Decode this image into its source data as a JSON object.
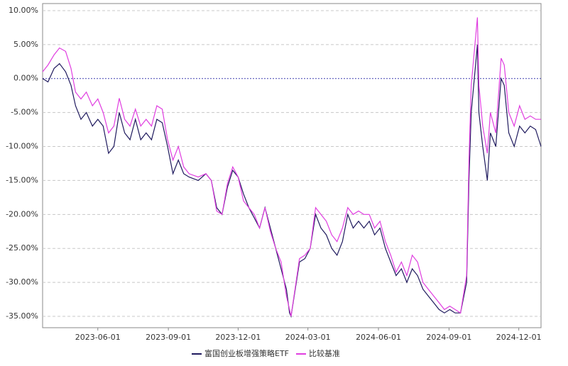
{
  "chart_data": {
    "type": "line",
    "x": [
      "2023-03-21",
      "2023-03-28",
      "2023-04-05",
      "2023-04-12",
      "2023-04-20",
      "2023-04-27",
      "2023-05-03",
      "2023-05-10",
      "2023-05-17",
      "2023-05-25",
      "2023-06-01",
      "2023-06-08",
      "2023-06-15",
      "2023-06-22",
      "2023-06-29",
      "2023-07-06",
      "2023-07-13",
      "2023-07-20",
      "2023-07-27",
      "2023-08-03",
      "2023-08-10",
      "2023-08-17",
      "2023-08-24",
      "2023-08-31",
      "2023-09-07",
      "2023-09-14",
      "2023-09-21",
      "2023-09-28",
      "2023-10-10",
      "2023-10-20",
      "2023-10-27",
      "2023-11-03",
      "2023-11-10",
      "2023-11-17",
      "2023-11-24",
      "2023-12-01",
      "2023-12-08",
      "2023-12-15",
      "2023-12-22",
      "2023-12-29",
      "2024-01-05",
      "2024-01-12",
      "2024-01-19",
      "2024-01-26",
      "2024-02-02",
      "2024-02-06",
      "2024-02-08",
      "2024-02-19",
      "2024-02-26",
      "2024-03-04",
      "2024-03-11",
      "2024-03-18",
      "2024-03-25",
      "2024-04-01",
      "2024-04-08",
      "2024-04-15",
      "2024-04-22",
      "2024-04-29",
      "2024-05-06",
      "2024-05-13",
      "2024-05-20",
      "2024-05-27",
      "2024-06-03",
      "2024-06-10",
      "2024-06-17",
      "2024-06-24",
      "2024-07-01",
      "2024-07-08",
      "2024-07-15",
      "2024-07-22",
      "2024-07-29",
      "2024-08-05",
      "2024-08-12",
      "2024-08-19",
      "2024-08-26",
      "2024-09-02",
      "2024-09-09",
      "2024-09-16",
      "2024-09-24",
      "2024-09-27",
      "2024-09-30",
      "2024-10-08",
      "2024-10-10",
      "2024-10-15",
      "2024-10-21",
      "2024-10-25",
      "2024-11-01",
      "2024-11-08",
      "2024-11-12",
      "2024-11-18",
      "2024-11-25",
      "2024-12-02",
      "2024-12-09",
      "2024-12-16",
      "2024-12-23",
      "2024-12-30"
    ],
    "series": [
      {
        "name": "富国创业板增强策略ETF",
        "color": "#1f1a5e",
        "values": [
          0,
          -0.5,
          1.5,
          2.2,
          1,
          -1,
          -4,
          -6,
          -5,
          -7,
          -6,
          -7,
          -11,
          -10,
          -5,
          -8,
          -9,
          -6,
          -9,
          -8,
          -9,
          -6,
          -6.5,
          -10,
          -14,
          -12,
          -14,
          -14.5,
          -15,
          -14,
          -15,
          -19,
          -20,
          -16,
          -13.5,
          -14.5,
          -17,
          -19,
          -20.5,
          -22,
          -19,
          -22,
          -25,
          -28,
          -31,
          -34.5,
          -35,
          -27,
          -26.5,
          -25,
          -20,
          -22,
          -23,
          -25,
          -26,
          -24,
          -20,
          -22,
          -21,
          -22,
          -21,
          -23,
          -22,
          -25,
          -27,
          -29,
          -28,
          -30,
          -28,
          -29,
          -31,
          -32,
          -33,
          -34,
          -34.5,
          -34,
          -34.5,
          -34.5,
          -30,
          -15,
          -5,
          5,
          -5,
          -10,
          -15,
          -8,
          -10,
          0,
          -1,
          -8,
          -10,
          -7,
          -8,
          -7,
          -7.5,
          -10
        ]
      },
      {
        "name": "比较基准",
        "color": "#e03ee0",
        "values": [
          1,
          2,
          3.5,
          4.5,
          4,
          1.5,
          -2,
          -3,
          -2,
          -4,
          -3,
          -5,
          -8,
          -7,
          -2.9,
          -6,
          -7,
          -4.5,
          -7,
          -6,
          -7,
          -4,
          -4.5,
          -9,
          -12,
          -10,
          -13,
          -14,
          -14.5,
          -14,
          -15,
          -19.5,
          -20,
          -15.5,
          -13,
          -14.5,
          -18,
          -19,
          -20,
          -22,
          -19,
          -22.5,
          -25,
          -27,
          -32,
          -34,
          -35,
          -26.5,
          -26,
          -25,
          -19,
          -20,
          -21,
          -23,
          -24,
          -22,
          -19,
          -20,
          -19.5,
          -20,
          -20,
          -22,
          -21,
          -24,
          -26,
          -28.5,
          -27,
          -29,
          -26,
          -27,
          -30,
          -31,
          -32,
          -33,
          -34,
          -33.5,
          -34,
          -34.5,
          -29,
          -12,
          -1,
          9,
          -1,
          -7,
          -11,
          -5,
          -8,
          3,
          2,
          -5,
          -7,
          -4,
          -6,
          -5.5,
          -6,
          -6
        ]
      }
    ],
    "xlim": [
      "2023-03-21",
      "2024-12-30"
    ],
    "xticks": [
      "2023-06-01",
      "2023-09-01",
      "2023-12-01",
      "2024-03-01",
      "2024-06-01",
      "2024-09-01",
      "2024-12-01"
    ],
    "ylim": [
      -36.67,
      11.04
    ],
    "yticks": [
      {
        "value": 10,
        "label": "10.00%"
      },
      {
        "value": 5,
        "label": "5.00%"
      },
      {
        "value": 0,
        "label": "0.00%"
      },
      {
        "value": -5,
        "label": "-5.00%"
      },
      {
        "value": -10,
        "label": "-10.00%"
      },
      {
        "value": -15,
        "label": "-15.00%"
      },
      {
        "value": -20,
        "label": "-20.00%"
      },
      {
        "value": -25,
        "label": "-25.00%"
      },
      {
        "value": -30,
        "label": "-30.00%"
      },
      {
        "value": -35,
        "label": "-35.00%"
      }
    ],
    "grid": true
  }
}
